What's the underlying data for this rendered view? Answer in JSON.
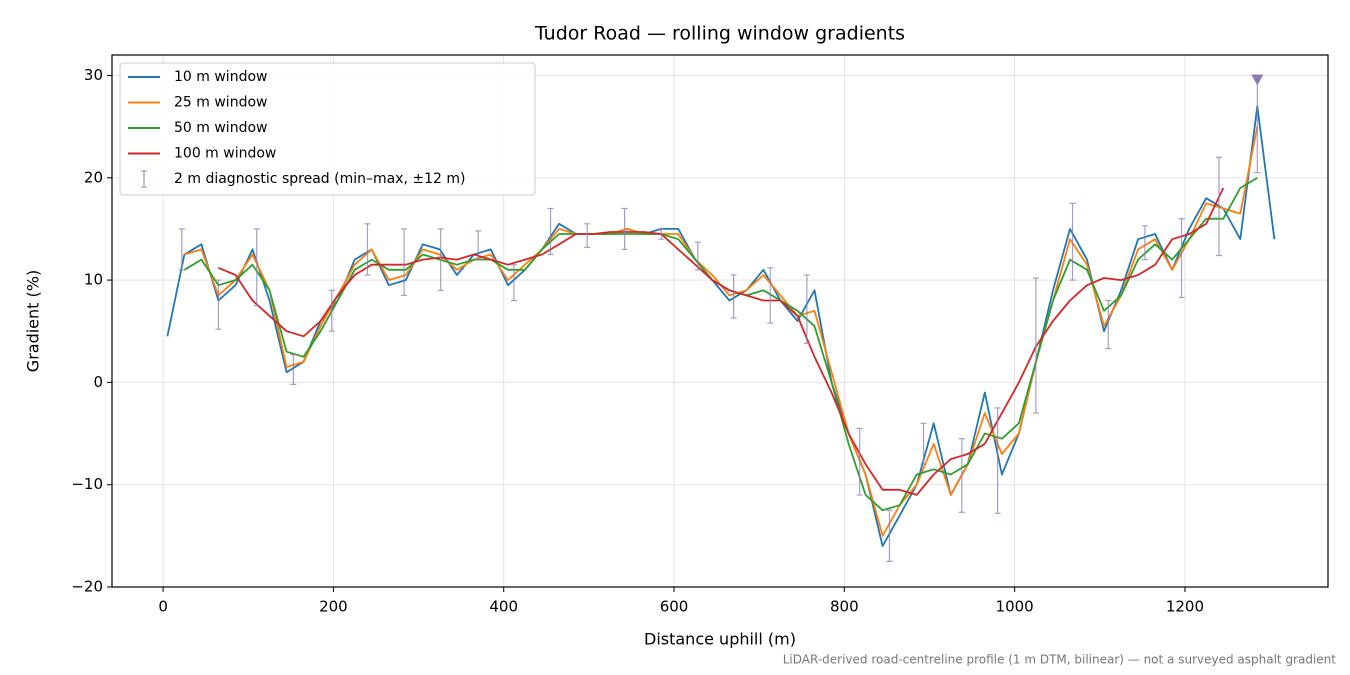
{
  "chart_data": {
    "type": "line",
    "title": "Tudor Road — rolling window gradients",
    "xlabel": "Distance uphill (m)",
    "ylabel": "Gradient (%)",
    "note": "LiDAR-derived road-centreline profile (1 m DTM, bilinear) — not a surveyed asphalt gradient",
    "xlim": [
      -60,
      1368
    ],
    "ylim": [
      -20,
      32
    ],
    "xticks": [
      0,
      200,
      400,
      600,
      800,
      1000,
      1200
    ],
    "yticks": [
      {
        "value": -20,
        "label": "−20"
      },
      {
        "value": -10,
        "label": "−10"
      },
      0,
      10,
      20,
      30
    ],
    "grid": true,
    "legend": "upper left",
    "x": [
      5,
      25,
      45,
      65,
      85,
      105,
      125,
      145,
      165,
      185,
      205,
      225,
      245,
      265,
      285,
      305,
      325,
      345,
      365,
      385,
      405,
      425,
      445,
      465,
      485,
      505,
      525,
      545,
      565,
      585,
      605,
      625,
      645,
      665,
      685,
      705,
      725,
      745,
      765,
      785,
      805,
      825,
      845,
      865,
      885,
      905,
      925,
      945,
      965,
      985,
      1005,
      1025,
      1045,
      1065,
      1085,
      1105,
      1125,
      1145,
      1165,
      1185,
      1205,
      1225,
      1245,
      1265,
      1285,
      1305
    ],
    "series": [
      {
        "name": "10 m window",
        "color": "#1f77b4",
        "values": [
          4.5,
          12.5,
          13.5,
          8,
          9.5,
          13,
          8,
          1,
          2,
          6,
          8,
          12,
          13,
          9.5,
          10,
          13.5,
          13,
          10.5,
          12.5,
          13,
          9.5,
          11,
          13,
          15.5,
          14.5,
          14.5,
          14.5,
          15,
          14.5,
          15,
          15,
          12,
          10,
          8,
          9,
          11,
          8,
          6,
          9,
          0,
          -5,
          -9,
          -16,
          -13,
          -10,
          -4,
          -11,
          -8,
          -1,
          -9,
          -5,
          2,
          9,
          15,
          12,
          5,
          9,
          14,
          14.5,
          11,
          15,
          18,
          17,
          14,
          27,
          14
        ]
      },
      {
        "name": "25 m window",
        "color": "#ff7f0e",
        "values": [
          null,
          12.5,
          13,
          8.5,
          10,
          12.5,
          9,
          1.5,
          2,
          5.5,
          8.5,
          11.5,
          13,
          10,
          10.5,
          13,
          12.5,
          11,
          12,
          12.5,
          10,
          11.5,
          13,
          15,
          14.5,
          14.5,
          14.5,
          15,
          14.5,
          14.5,
          14.5,
          12,
          10.5,
          8.5,
          9,
          10.5,
          8.5,
          6.5,
          7,
          1,
          -5,
          -9,
          -15,
          -12,
          -10,
          -6,
          -11,
          -8,
          -3,
          -7,
          -5,
          2,
          8,
          14,
          11.5,
          5.5,
          8.5,
          13,
          14,
          11,
          14,
          17.5,
          17,
          16.5,
          25,
          null
        ]
      },
      {
        "name": "50 m window",
        "color": "#2ca02c",
        "values": [
          null,
          11,
          12,
          9.5,
          10,
          11.5,
          9,
          3,
          2.5,
          5,
          8,
          11,
          12,
          11,
          11,
          12.5,
          12,
          11.5,
          12,
          12,
          11,
          11,
          13,
          14.5,
          14.5,
          14.5,
          14.5,
          14.5,
          14.5,
          14.5,
          14,
          12,
          10,
          9,
          8.5,
          9,
          8,
          7,
          5.5,
          0,
          -6,
          -11,
          -12.5,
          -12,
          -9,
          -8.5,
          -9,
          -8,
          -5,
          -5.5,
          -4,
          2,
          8,
          12,
          11,
          7,
          8.5,
          12,
          13.5,
          12,
          14,
          16,
          16,
          19,
          20,
          null
        ]
      },
      {
        "name": "100 m window",
        "color": "#d62728",
        "values": [
          null,
          null,
          null,
          11.2,
          10.5,
          8,
          6.5,
          5,
          4.5,
          6,
          8.5,
          10.5,
          11.5,
          11.5,
          11.5,
          12,
          12.2,
          12,
          12.5,
          12,
          11.5,
          12,
          12.5,
          13.5,
          14.5,
          14.5,
          14.7,
          14.7,
          14.7,
          14.5,
          13,
          11.5,
          10,
          9,
          8.5,
          8,
          8,
          6.5,
          2.5,
          -1,
          -5,
          -8,
          -10.5,
          -10.5,
          -11,
          -9,
          -7.5,
          -7,
          -6,
          -3,
          0,
          3.5,
          6,
          8,
          9.5,
          10.2,
          10,
          10.5,
          11.5,
          14,
          14.5,
          15.5,
          19,
          null,
          null,
          null
        ]
      }
    ],
    "errorbars": {
      "name": "2 m diagnostic spread (min–max, ±12 m)",
      "color": "#8c7bb5",
      "x": [
        22,
        65,
        110,
        153,
        198,
        240,
        283,
        326,
        370,
        412,
        455,
        498,
        542,
        585,
        628,
        670,
        713,
        756,
        818,
        853,
        893,
        938,
        980,
        1025,
        1068,
        1110,
        1153,
        1196,
        1240,
        1285
      ],
      "low": [
        11,
        5.2,
        7.5,
        -0.2,
        5,
        10.5,
        8.5,
        9,
        12,
        8,
        12.5,
        13.2,
        13,
        14,
        11,
        6.3,
        5.8,
        3.8,
        -11,
        -17.5,
        -8,
        -12.7,
        -12.8,
        -3,
        10,
        3.3,
        12,
        8.3,
        12.4,
        20.5
      ],
      "high": [
        15,
        10,
        15,
        2.7,
        9,
        15.5,
        15,
        15,
        14.8,
        11.5,
        17,
        15.5,
        17,
        15,
        13.7,
        10.5,
        11.2,
        10.5,
        -4.5,
        -12.5,
        -4,
        -5.5,
        -2.5,
        10.2,
        17.5,
        8,
        15.3,
        16,
        22,
        30
      ]
    },
    "overflow_markers": {
      "x": [
        1285
      ],
      "y": [
        29.6
      ]
    }
  }
}
